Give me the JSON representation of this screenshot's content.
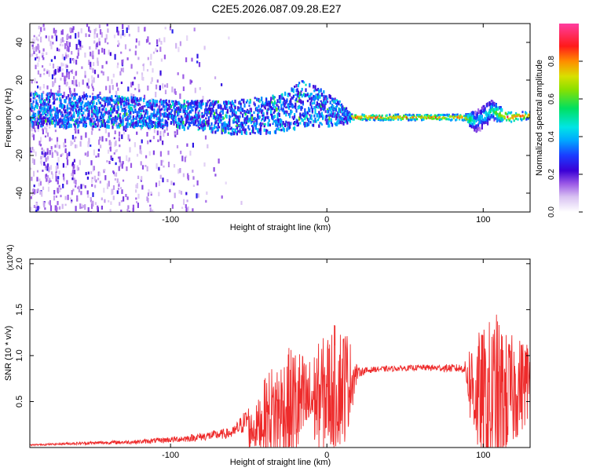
{
  "figure_title": "C2E5.2026.087.09.28.E27",
  "colors": {
    "snr_line": "#ee2b2b",
    "axis": "#000000",
    "colormap": [
      "#ffffff",
      "#d9c2f2",
      "#9b59e6",
      "#5a00c8",
      "#1a1aff",
      "#00a8ff",
      "#00e5e5",
      "#00e060",
      "#d8e000",
      "#ff8c00",
      "#ff1a1a",
      "#ff3da0"
    ]
  },
  "chart_data": [
    {
      "type": "heatmap",
      "title": "C2E5.2026.087.09.28.E27",
      "xlabel": "Height of straight line (km)",
      "ylabel": "Frequency (Hz)",
      "xlim": [
        -190,
        130
      ],
      "ylim": [
        -50,
        50
      ],
      "xticks": [
        -100,
        0,
        100
      ],
      "xtick_labels": [
        "-100",
        "0",
        "100"
      ],
      "yticks": [
        -40,
        -20,
        0,
        20,
        40
      ],
      "ytick_labels": [
        "-40",
        "-20",
        "0",
        "20",
        "40"
      ],
      "colorbar": {
        "label": "Normalized spectral amplitude",
        "range": [
          0,
          1
        ],
        "ticks": [
          0.0,
          0.2,
          0.4,
          0.6,
          0.8
        ],
        "tick_labels": [
          "0.0",
          "0.2",
          "0.4",
          "0.6",
          "0.8"
        ]
      },
      "ridge": {
        "description": "Broadband noise below ~15 km; narrow near-constant tone above",
        "x": [
          -170,
          -130,
          -100,
          -60,
          -30,
          -15,
          0,
          10,
          15,
          50,
          88,
          95,
          105,
          115,
          130
        ],
        "center_freq": [
          4,
          3,
          2,
          0,
          2,
          8,
          4,
          2,
          0,
          0,
          0,
          -2,
          4,
          0,
          1
        ],
        "half_width": [
          9,
          8,
          7,
          9,
          10,
          12,
          9,
          5,
          1.5,
          1.5,
          1.5,
          6,
          5,
          3,
          2
        ],
        "peak_amplitude": [
          0.3,
          0.28,
          0.3,
          0.25,
          0.3,
          0.25,
          0.4,
          0.5,
          0.9,
          0.85,
          0.85,
          0.4,
          0.5,
          0.9,
          0.8
        ]
      }
    },
    {
      "type": "line",
      "xlabel": "Height of straight line (km)",
      "ylabel": "SNR (10 * v/v)",
      "yscale_label": "(x10^4)",
      "xlim": [
        -190,
        130
      ],
      "ylim": [
        0,
        2.05
      ],
      "xticks": [
        -100,
        0,
        100
      ],
      "xtick_labels": [
        "-100",
        "0",
        "100"
      ],
      "yticks": [
        0.5,
        1.0,
        1.5,
        2.0
      ],
      "ytick_labels": [
        "0.5",
        "1.0",
        "1.5",
        "2.0"
      ],
      "envelope": {
        "x": [
          -190,
          -160,
          -120,
          -90,
          -60,
          -45,
          -38,
          -30,
          -20,
          -12,
          -5,
          5,
          12,
          18,
          20,
          30,
          60,
          88,
          92,
          100,
          108,
          115,
          122,
          130
        ],
        "baseline": [
          0.02,
          0.03,
          0.04,
          0.06,
          0.1,
          0.22,
          0.35,
          0.4,
          0.45,
          0.5,
          0.55,
          0.65,
          0.7,
          0.78,
          0.82,
          0.85,
          0.87,
          0.86,
          0.7,
          0.45,
          0.4,
          0.55,
          0.65,
          0.75
        ],
        "amplitude": [
          0.01,
          0.02,
          0.03,
          0.05,
          0.08,
          0.25,
          0.5,
          0.6,
          0.7,
          0.45,
          0.6,
          0.7,
          0.65,
          0.2,
          0.05,
          0.03,
          0.03,
          0.05,
          0.5,
          0.85,
          1.1,
          0.7,
          0.55,
          0.45
        ]
      }
    }
  ]
}
